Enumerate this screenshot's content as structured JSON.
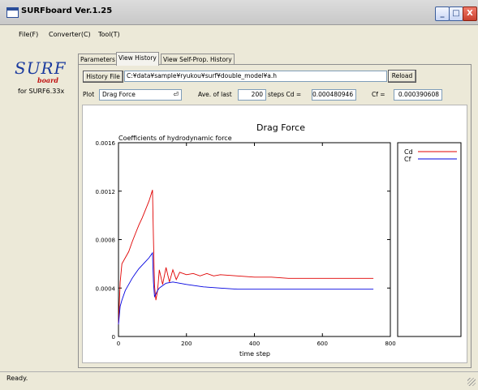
{
  "window": {
    "title": "SURFboard Ver.1.25",
    "min": "_",
    "max": "□",
    "close": "X"
  },
  "menu": [
    "File(F)",
    "Converter(C)",
    "Tool(T)"
  ],
  "logo": {
    "surf": "SURF",
    "board": "board",
    "for": "for SURF6.33x"
  },
  "tabs": [
    "Parameters",
    "View History",
    "View Self-Prop. History"
  ],
  "history": {
    "button": "History File",
    "path": "C:¥data¥sample¥ryukou¥surf¥double_model¥a.h",
    "reload": "Reload"
  },
  "plot": {
    "label": "Plot",
    "selected": "Drag Force",
    "arrow": "⏎",
    "ave_label": "Ave. of last",
    "ave_value": "200",
    "steps_label": "steps  Cd =",
    "cd_value": "0.000480946",
    "cf_label": "Cf =",
    "cf_value": "0.000390608"
  },
  "chart_data": {
    "type": "line",
    "title": "Drag Force",
    "subtitle": "Coefficients of hydrodynamic force",
    "xlabel": "time step",
    "ylabel": "",
    "xlim": [
      0,
      800
    ],
    "ylim": [
      0,
      0.0016
    ],
    "xticks": [
      "0",
      "200",
      "400",
      "600",
      "800"
    ],
    "yticks": [
      "0",
      "0.0004",
      "0.0008",
      "0.0012",
      "0.0016"
    ],
    "legend_position": "right",
    "series": [
      {
        "name": "Cd",
        "color": "#e00000",
        "x": [
          0,
          5,
          10,
          20,
          30,
          40,
          50,
          60,
          70,
          80,
          90,
          100,
          103,
          106,
          110,
          115,
          120,
          130,
          140,
          150,
          160,
          170,
          180,
          200,
          220,
          240,
          260,
          280,
          300,
          350,
          400,
          450,
          500,
          550,
          600,
          650,
          700,
          750
        ],
        "y": [
          0.0001,
          0.00045,
          0.0006,
          0.00065,
          0.0007,
          0.00078,
          0.00085,
          0.00092,
          0.00098,
          0.00105,
          0.00112,
          0.00121,
          0.0008,
          0.00042,
          0.0003,
          0.00038,
          0.00055,
          0.00043,
          0.00057,
          0.00045,
          0.00055,
          0.00047,
          0.00053,
          0.00051,
          0.00052,
          0.0005,
          0.00052,
          0.0005,
          0.00051,
          0.0005,
          0.00049,
          0.00049,
          0.00048,
          0.00048,
          0.00048,
          0.00048,
          0.00048,
          0.00048
        ]
      },
      {
        "name": "Cf",
        "color": "#0000e0",
        "x": [
          0,
          5,
          10,
          20,
          30,
          40,
          50,
          60,
          70,
          80,
          90,
          100,
          103,
          106,
          110,
          115,
          120,
          130,
          140,
          160,
          180,
          200,
          250,
          300,
          350,
          400,
          500,
          600,
          700,
          750
        ],
        "y": [
          0.0001,
          0.00025,
          0.0003,
          0.00038,
          0.00043,
          0.00048,
          0.00052,
          0.00056,
          0.00059,
          0.00062,
          0.00065,
          0.00069,
          0.00045,
          0.00033,
          0.00035,
          0.00038,
          0.0004,
          0.00042,
          0.00044,
          0.00045,
          0.00044,
          0.00043,
          0.00041,
          0.0004,
          0.00039,
          0.00039,
          0.00039,
          0.00039,
          0.00039,
          0.00039
        ]
      }
    ]
  },
  "status": {
    "text": "Ready."
  }
}
